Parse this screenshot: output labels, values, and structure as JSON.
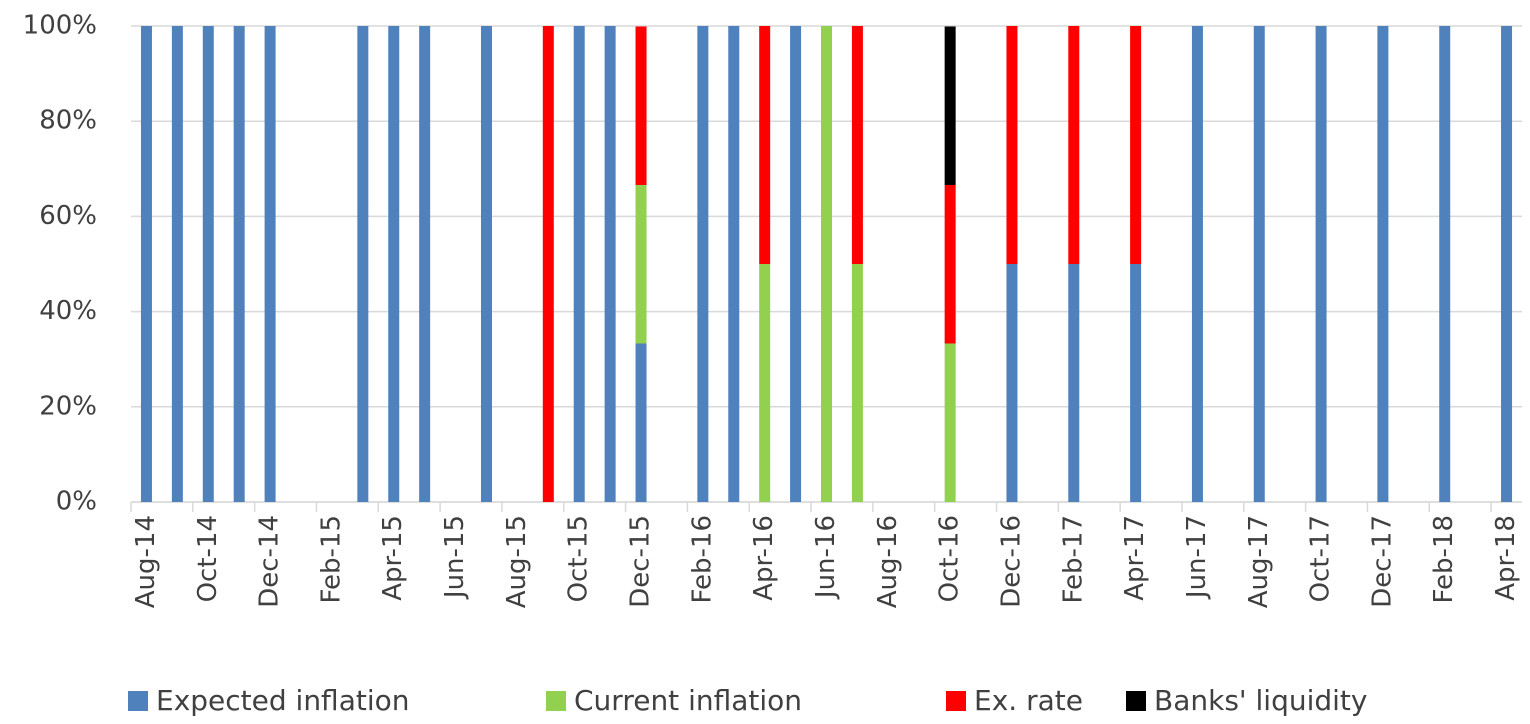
{
  "chart_data": {
    "type": "stacked_bar",
    "categories": [
      "Aug-14",
      null,
      "Oct-14",
      null,
      "Dec-14",
      null,
      "Feb-15",
      null,
      "Apr-15",
      null,
      "Jun-15",
      null,
      "Aug-15",
      null,
      "Oct-15",
      null,
      "Dec-15",
      null,
      "Feb-16",
      null,
      "Apr-16",
      null,
      "Jun-16",
      null,
      "Aug-16",
      null,
      "Oct-16",
      null,
      "Dec-16",
      null,
      "Feb-17",
      null,
      "Apr-17",
      null,
      "Jun-17",
      null,
      "Aug-17",
      null,
      "Oct-17",
      null,
      "Dec-17",
      null,
      "Feb-18",
      null,
      "Apr-18"
    ],
    "series": [
      {
        "name": "Expected inflation",
        "color": "#4f81bd",
        "values": [
          100,
          100,
          100,
          100,
          100,
          0,
          0,
          100,
          100,
          100,
          0,
          100,
          0,
          0,
          100,
          100,
          33.3,
          0,
          100,
          100,
          0,
          100,
          0,
          0,
          0,
          0,
          0,
          0,
          50,
          0,
          50,
          0,
          50,
          0,
          100,
          0,
          100,
          0,
          100,
          0,
          100,
          0,
          100,
          0,
          100
        ]
      },
      {
        "name": "Current inflation",
        "color": "#92d050",
        "values": [
          0,
          0,
          0,
          0,
          0,
          0,
          0,
          0,
          0,
          0,
          0,
          0,
          0,
          0,
          0,
          0,
          33.3,
          0,
          0,
          0,
          50,
          0,
          100,
          50,
          0,
          0,
          33.3,
          0,
          0,
          0,
          0,
          0,
          0,
          0,
          0,
          0,
          0,
          0,
          0,
          0,
          0,
          0,
          0,
          0,
          0
        ]
      },
      {
        "name": "Ex. rate",
        "color": "#ff0000",
        "values": [
          0,
          0,
          0,
          0,
          0,
          0,
          0,
          0,
          0,
          0,
          0,
          0,
          0,
          100,
          0,
          0,
          33.3,
          0,
          0,
          0,
          50,
          0,
          0,
          50,
          0,
          0,
          33.3,
          0,
          50,
          0,
          50,
          0,
          50,
          0,
          0,
          0,
          0,
          0,
          0,
          0,
          0,
          0,
          0,
          0,
          0
        ]
      },
      {
        "name": "Banks' liquidity",
        "color": "#000000",
        "values": [
          0,
          0,
          0,
          0,
          0,
          0,
          0,
          0,
          0,
          0,
          0,
          0,
          0,
          0,
          0,
          0,
          0,
          0,
          0,
          0,
          0,
          0,
          0,
          0,
          0,
          0,
          33.3,
          0,
          0,
          0,
          0,
          0,
          0,
          0,
          0,
          0,
          0,
          0,
          0,
          0,
          0,
          0,
          0,
          0,
          0
        ]
      }
    ],
    "ylim": [
      0,
      100
    ],
    "yticks": [
      {
        "value": 0,
        "label": "0%"
      },
      {
        "value": 20,
        "label": "20%"
      },
      {
        "value": 40,
        "label": "40%"
      },
      {
        "value": 60,
        "label": "60%"
      },
      {
        "value": 80,
        "label": "80%"
      },
      {
        "value": 100,
        "label": "100%"
      }
    ],
    "grid": true,
    "legend": "bottom"
  }
}
